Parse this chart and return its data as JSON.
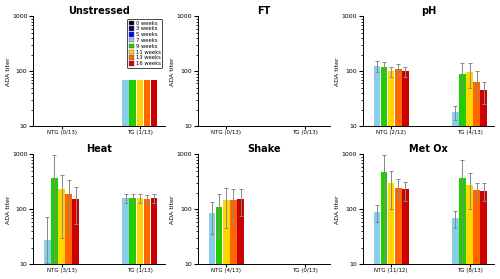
{
  "week_colors": [
    "#000000",
    "#00008B",
    "#0000FF",
    "#87CEEB",
    "#22CC00",
    "#FFD700",
    "#FF6600",
    "#CC0000"
  ],
  "week_labels": [
    "0 weeks",
    "3 weeks",
    "5 weeks",
    "7 weeks",
    "9 weeks",
    "11 weeks",
    "13 weeks",
    "16 weeks"
  ],
  "subplot_titles": [
    "Unstressed",
    "FT",
    "pH",
    "Heat",
    "Shake",
    "Met Ox"
  ],
  "subplot_data": {
    "Unstressed": {
      "groups": [
        "NTG (0/13)",
        "TG (1/13)"
      ],
      "NTG (0/13)": {
        "vals": {},
        "errs": {}
      },
      "TG (1/13)": {
        "vals": {
          "3": 70,
          "4": 70,
          "5": 70,
          "6": 70,
          "7": 70
        },
        "errs": {}
      }
    },
    "FT": {
      "groups": [
        "NTG (0/13)",
        "TG (0/13)"
      ],
      "NTG (0/13)": {
        "vals": {},
        "errs": {}
      },
      "TG (0/13)": {
        "vals": {},
        "errs": {}
      }
    },
    "pH": {
      "groups": [
        "NTG (2/12)",
        "TG (4/13)"
      ],
      "NTG (2/12)": {
        "vals": {
          "3": 125,
          "4": 120,
          "5": 100,
          "6": 110,
          "7": 100
        },
        "errs": {
          "3": 30,
          "4": 25,
          "5": 20,
          "6": 25,
          "7": 20
        }
      },
      "TG (4/13)": {
        "vals": {
          "3": 18,
          "4": 90,
          "5": 95,
          "6": 65,
          "7": 45
        },
        "errs": {
          "3": 5,
          "4": 50,
          "5": 45,
          "6": 35,
          "7": 20
        }
      }
    },
    "Heat": {
      "groups": [
        "NTG (3/13)",
        "TG (1/13)"
      ],
      "NTG (3/13)": {
        "vals": {
          "3": 28,
          "4": 380,
          "5": 230,
          "6": 190,
          "7": 155
        },
        "errs": {
          "3": 45,
          "4": 600,
          "5": 200,
          "6": 150,
          "7": 100
        }
      },
      "TG (1/13)": {
        "vals": {
          "3": 160,
          "4": 160,
          "5": 160,
          "6": 155,
          "7": 160
        },
        "errs": {
          "3": 30,
          "4": 30,
          "5": 30,
          "6": 30,
          "7": 30
        }
      }
    },
    "Shake": {
      "groups": [
        "NTG (4/13)",
        "TG (0/13)"
      ],
      "NTG (4/13)": {
        "vals": {
          "3": 85,
          "4": 110,
          "5": 145,
          "6": 145,
          "7": 155
        },
        "errs": {
          "3": 50,
          "4": 80,
          "5": 100,
          "6": 90,
          "7": 80
        }
      },
      "TG (0/13)": {
        "vals": {},
        "errs": {}
      }
    },
    "Met Ox": {
      "groups": [
        "NTG (11/12)",
        "TG (8/13)"
      ],
      "NTG (11/12)": {
        "vals": {
          "3": 90,
          "4": 480,
          "5": 300,
          "6": 250,
          "7": 230
        },
        "errs": {
          "3": 30,
          "4": 500,
          "5": 200,
          "6": 100,
          "7": 90
        }
      },
      "TG (8/13)": {
        "vals": {
          "3": 70,
          "4": 380,
          "5": 280,
          "6": 225,
          "7": 220
        },
        "errs": {
          "3": 25,
          "4": 400,
          "5": 180,
          "6": 80,
          "7": 80
        }
      }
    }
  },
  "week_indices": [
    3,
    4,
    5,
    6,
    7
  ],
  "ylim": [
    10,
    1000
  ],
  "background": "#FFFFFF"
}
